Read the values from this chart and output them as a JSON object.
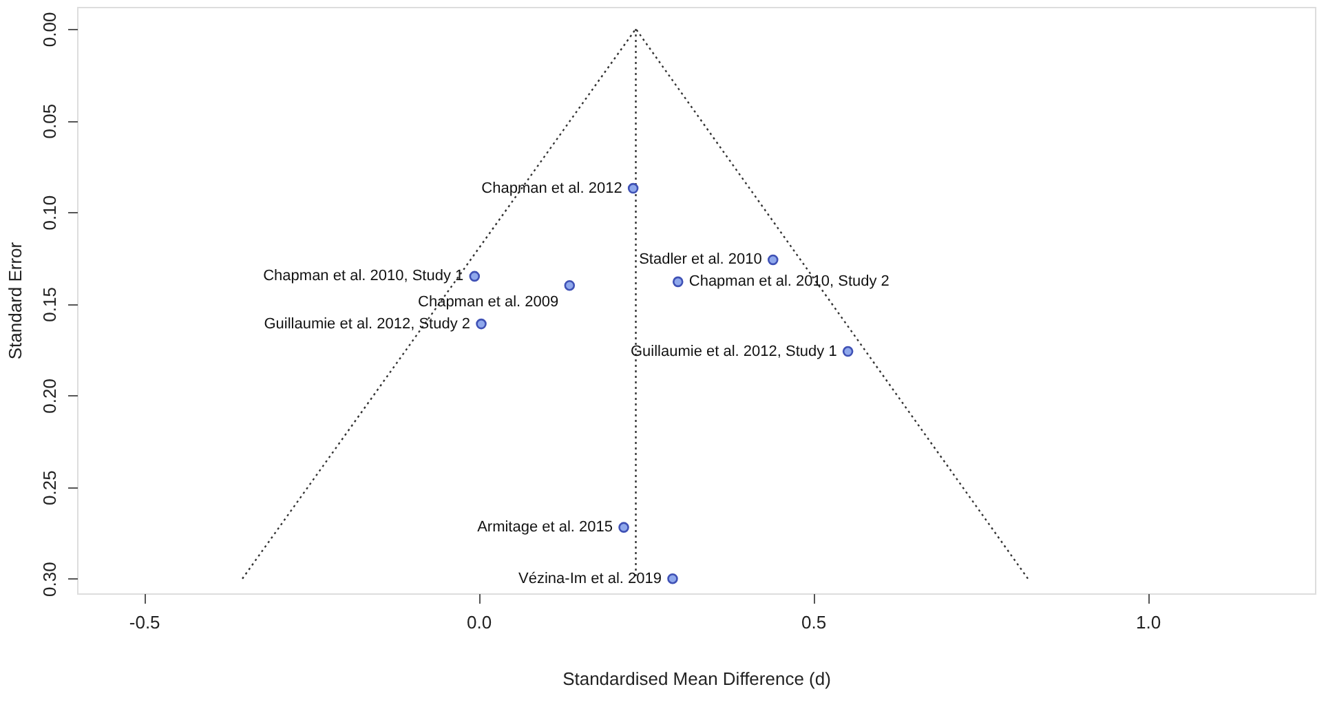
{
  "chart_data": {
    "type": "scatter",
    "xlabel": "Standardised Mean Difference (d)",
    "ylabel": "Standard Error",
    "xlim": [
      -0.6,
      1.25
    ],
    "ylim": [
      0.308,
      -0.012
    ],
    "xticks": [
      {
        "value": -0.5,
        "label": "-0.5"
      },
      {
        "value": 0,
        "label": "0.0"
      },
      {
        "value": 0.5,
        "label": "0.5"
      },
      {
        "value": 1,
        "label": "1.0"
      }
    ],
    "yticks": [
      {
        "value": 0,
        "label": "0.00"
      },
      {
        "value": 0.05,
        "label": "0.05"
      },
      {
        "value": 0.1,
        "label": "0.10"
      },
      {
        "value": 0.15,
        "label": "0.15"
      },
      {
        "value": 0.2,
        "label": "0.20"
      },
      {
        "value": 0.25,
        "label": "0.25"
      },
      {
        "value": 0.3,
        "label": "0.30"
      }
    ],
    "grid": false,
    "marker": "circle",
    "series": [
      {
        "type": "line",
        "color": "#333333",
        "line_style": "dotted",
        "marker": "none",
        "x": [
          -0.353,
          0.235,
          0.821
        ],
        "values": [
          0.3,
          0,
          0.3
        ]
      },
      {
        "type": "line",
        "color": "#333333",
        "line_style": "dotted",
        "marker": "none",
        "x": [
          0.235,
          0.235
        ],
        "values": [
          0,
          0.3
        ]
      },
      {
        "color": "#3f51b5",
        "x": [
          0.231,
          0.44,
          -0.006,
          0.298,
          0.136,
          0.004,
          0.552,
          0.217,
          0.29
        ],
        "values": [
          0.087,
          0.126,
          0.135,
          0.138,
          0.14,
          0.161,
          0.176,
          0.272,
          0.3
        ]
      }
    ],
    "annotations": [
      {
        "text": "Chapman et al. 2012",
        "x": 0.231,
        "y": 0.087
      },
      {
        "text": "Stadler et al. 2010",
        "x": 0.44,
        "y": 0.126
      },
      {
        "text": "Chapman et al. 2010, Study 1",
        "x": -0.006,
        "y": 0.135
      },
      {
        "text": "Chapman et al. 2010, Study 2",
        "x": 0.298,
        "y": 0.138
      },
      {
        "text": "Chapman et al. 2009",
        "x": 0.136,
        "y": 0.14
      },
      {
        "text": "Guillaumie et al. 2012, Study 2",
        "x": 0.004,
        "y": 0.161
      },
      {
        "text": "Guillaumie et al. 2012, Study 1",
        "x": 0.552,
        "y": 0.176
      },
      {
        "text": "Armitage et al. 2015",
        "x": 0.217,
        "y": 0.272
      },
      {
        "text": "Vézina-Im et al. 2019",
        "x": 0.29,
        "y": 0.3
      }
    ]
  }
}
